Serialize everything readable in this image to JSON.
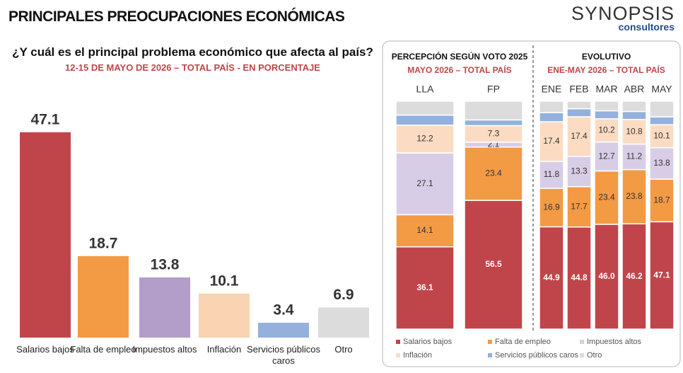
{
  "header": {
    "title": "PRINCIPALES PREOCUPACIONES ECONÓMICAS",
    "logo": "SYNOPSIS",
    "logo_subtitle": "consultores"
  },
  "chart_data": [
    {
      "type": "bar",
      "title": "¿Y cuál es el principal problema económico que afecta al país?",
      "subtitle": "12-15 DE MAYO DE 2026 – TOTAL PAÍS - EN PORCENTAJE",
      "categories": [
        "Salarios bajos",
        "Falta de empleo",
        "Impuestos altos",
        "Inflación",
        "Servicios públicos caros",
        "Otro"
      ],
      "values": [
        47.1,
        18.7,
        13.8,
        10.1,
        3.4,
        6.9
      ],
      "colors": [
        "#c0454a",
        "#f39a45",
        "#b39dc9",
        "#f9d3b2",
        "#93b1dc",
        "#dcdcdc"
      ],
      "ylim": [
        0,
        50
      ]
    },
    {
      "type": "stacked-bar",
      "title": "PERCEPCIÓN SEGÚN VOTO 2025",
      "subtitle": "MAYO 2026 – TOTAL PAÍS",
      "categories": [
        "LLA",
        "FP"
      ],
      "ylim": [
        0,
        100
      ],
      "series": [
        {
          "name": "Salarios bajos",
          "color": "#c0454a",
          "values": [
            36.1,
            56.5
          ],
          "value_labels": [
            "36.1",
            "56.5"
          ]
        },
        {
          "name": "Falta de empleo",
          "color": "#f39a45",
          "values": [
            14.1,
            23.4
          ],
          "value_labels": [
            "14.1",
            "23.4"
          ]
        },
        {
          "name": "Impuestos altos",
          "color": "#d8cde6",
          "values": [
            27.1,
            2.1
          ],
          "value_labels": [
            "27.1",
            "2.1"
          ]
        },
        {
          "name": "Inflación",
          "color": "#fbdcc2",
          "values": [
            12.2,
            7.3
          ],
          "value_labels": [
            "12.2",
            "7.3"
          ]
        },
        {
          "name": "Servicios públicos caros",
          "color": "#93b1dc",
          "values": [
            4.4,
            2.5
          ]
        },
        {
          "name": "Otro",
          "color": "#dcdcdc",
          "values": [
            6.1,
            8.2
          ]
        }
      ]
    },
    {
      "type": "stacked-bar",
      "title": "EVOLUTIVO",
      "subtitle": "ENE-MAY 2026 – TOTAL PAÍS",
      "categories": [
        "ENE",
        "FEB",
        "MAR",
        "ABR",
        "MAY"
      ],
      "ylim": [
        0,
        100
      ],
      "series": [
        {
          "name": "Salarios bajos",
          "color": "#c0454a",
          "values": [
            44.9,
            44.8,
            46.0,
            46.2,
            47.1
          ],
          "value_labels": [
            "44.9",
            "44.8",
            "46.0",
            "46.2",
            "47.1"
          ]
        },
        {
          "name": "Falta de empleo",
          "color": "#f39a45",
          "values": [
            16.9,
            17.7,
            23.4,
            23.8,
            18.7
          ],
          "value_labels": [
            "16.9",
            "17.7",
            "23.4",
            "23.8",
            "18.7"
          ]
        },
        {
          "name": "Impuestos altos",
          "color": "#d8cde6",
          "values": [
            11.8,
            13.3,
            12.7,
            11.2,
            13.8
          ],
          "value_labels": [
            "11.8",
            "13.3",
            "12.7",
            "11.2",
            "13.8"
          ]
        },
        {
          "name": "Inflación",
          "color": "#fbdcc2",
          "values": [
            17.4,
            17.4,
            10.2,
            10.8,
            10.1
          ],
          "value_labels": [
            "17.4",
            "17.4",
            "10.2",
            "10.8",
            "10.1"
          ]
        },
        {
          "name": "Servicios públicos caros",
          "color": "#93b1dc",
          "values": [
            4.0,
            3.5,
            3.5,
            3.5,
            3.4
          ]
        },
        {
          "name": "Otro",
          "color": "#dcdcdc",
          "values": [
            5.0,
            3.3,
            4.2,
            4.5,
            6.9
          ]
        }
      ]
    }
  ]
}
